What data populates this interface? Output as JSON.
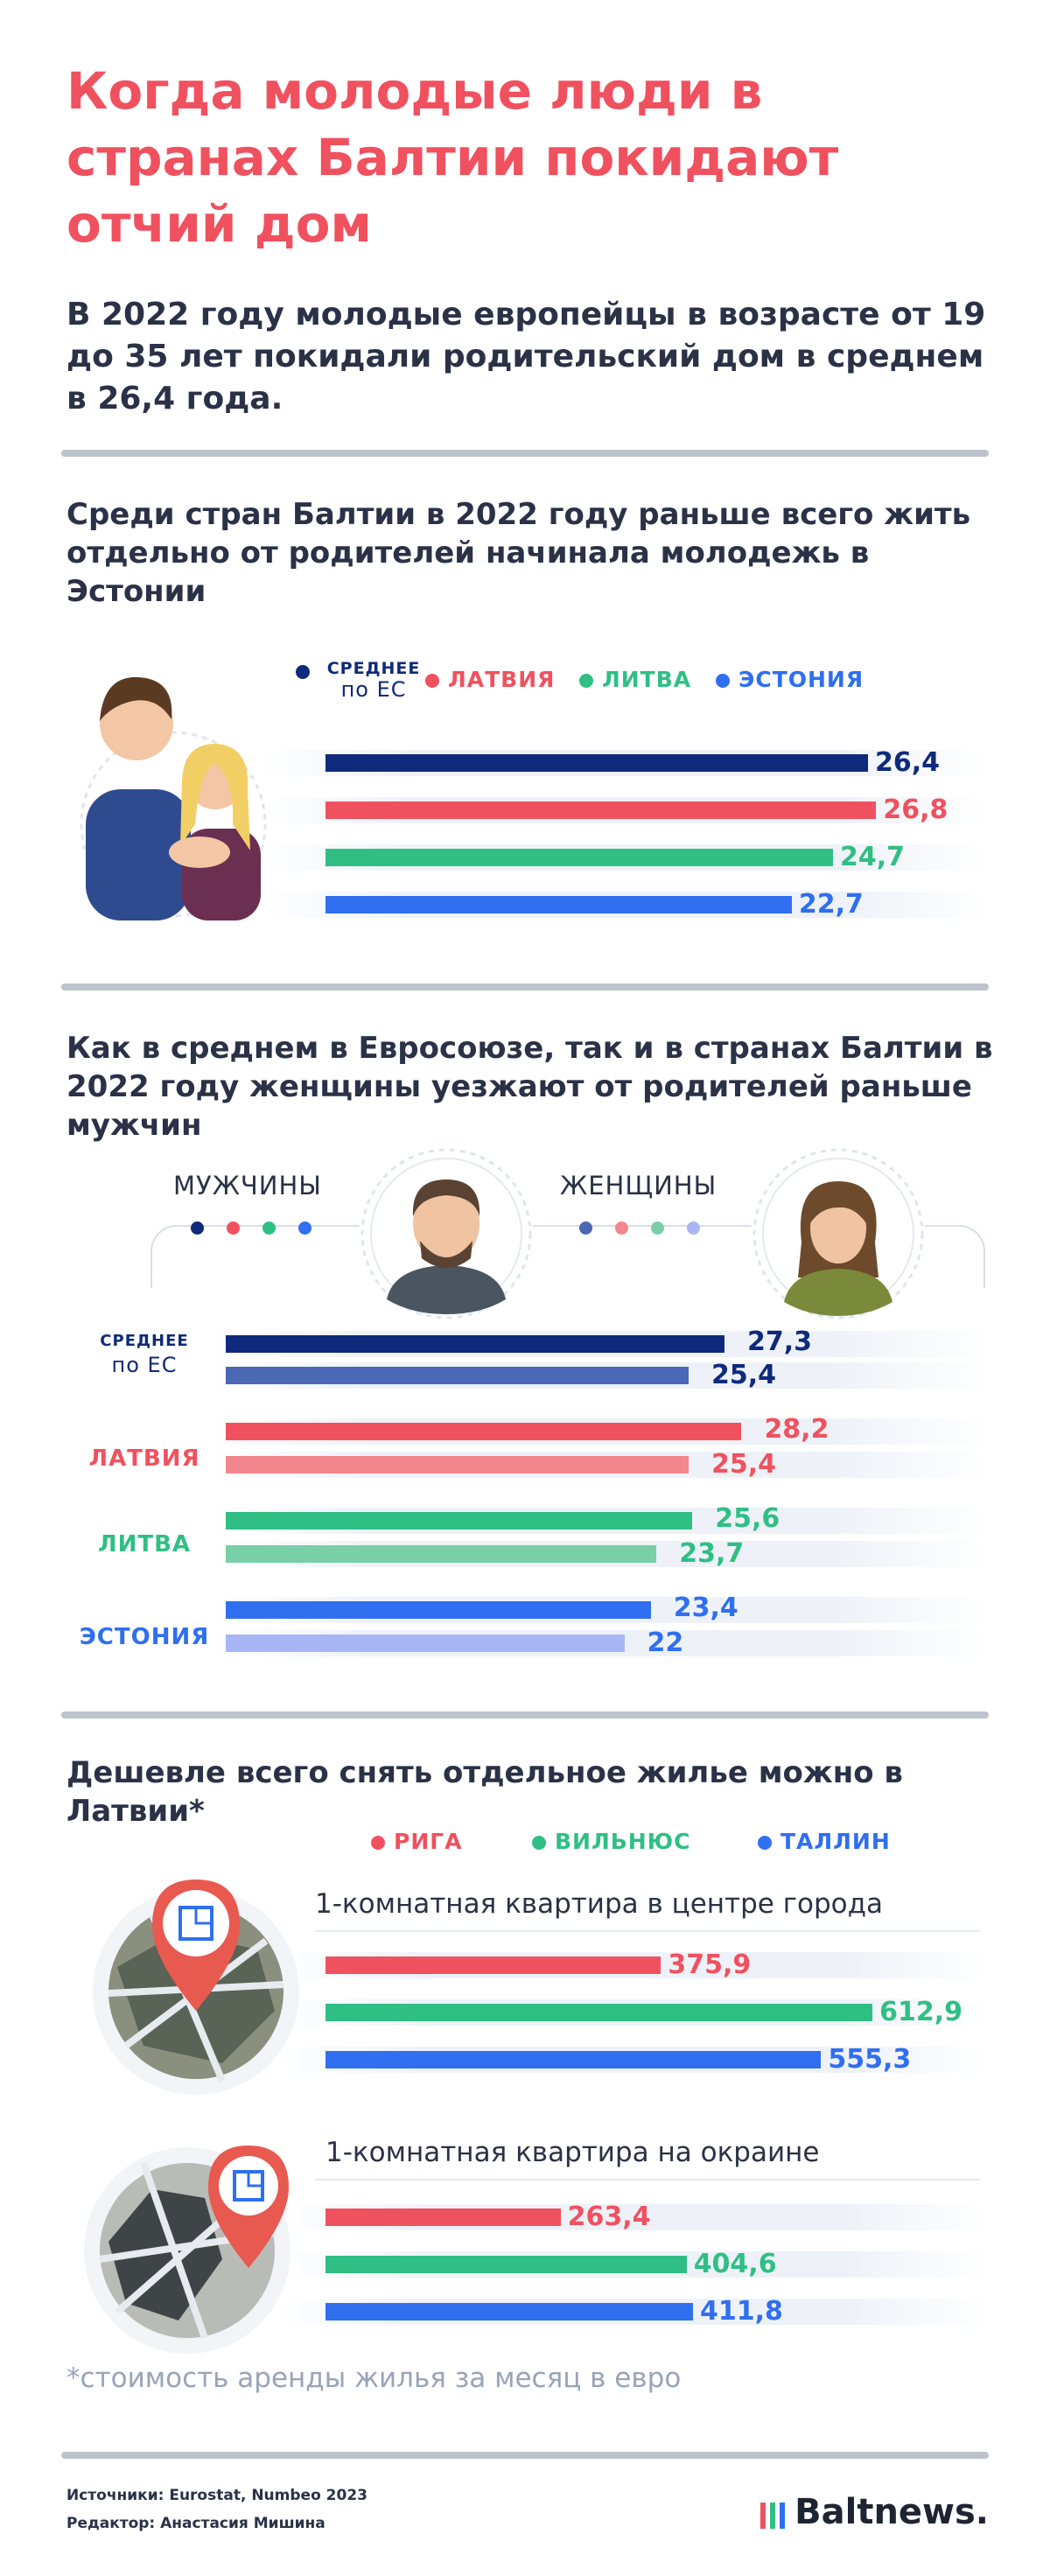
{
  "header": {
    "title": "Когда молодые люди в странах Балтии покидают отчий дом",
    "lead": "В 2022 году молодые европейцы в возрасте от 19 до 35 лет покидали родительский дом в среднем в 26,4 года."
  },
  "section1": {
    "heading": "Среди стран Балтии в 2022 году раньше всего жить отдельно от родителей начинала молодежь в Эстонии",
    "legend": [
      {
        "label": "СРЕДНЕЕ по ЕС",
        "label_top": "СРЕДНЕЕ",
        "label_bottom": "по ЕС",
        "color": "#0f2a7c"
      },
      {
        "label": "ЛАТВИЯ",
        "color": "#f0515f"
      },
      {
        "label": "ЛИТВА",
        "color": "#2fbf84"
      },
      {
        "label": "ЭСТОНИЯ",
        "color": "#2f6ff0"
      }
    ],
    "values_display": [
      "26,4",
      "26,8",
      "24,7",
      "22,7"
    ]
  },
  "section2": {
    "heading": "Как в среднем в Евросоюзе, так и в странах Балтии в 2022 году женщины уезжают от родителей раньше мужчин",
    "men_label": "МУЖЧИНЫ",
    "women_label": "ЖЕНЩИНЫ",
    "men_colors": [
      "#0f2a7c",
      "#f0515f",
      "#2fbf84",
      "#2f6ff0"
    ],
    "women_colors": [
      "#4a68b3",
      "#f4868d",
      "#79cfa7",
      "#a9b6f5"
    ],
    "categories": [
      {
        "label": "СРЕДНЕЕ по ЕС",
        "label_top": "СРЕДНЕЕ",
        "label_bottom": "по ЕС",
        "color": "#0f2a7c",
        "men": "27,3",
        "women": "25,4"
      },
      {
        "label": "ЛАТВИЯ",
        "color": "#f0515f",
        "men": "28,2",
        "women": "25,4"
      },
      {
        "label": "ЛИТВА",
        "color": "#2fbf84",
        "men": "25,6",
        "women": "23,7"
      },
      {
        "label": "ЭСТОНИЯ",
        "color": "#2f6ff0",
        "men": "23,4",
        "women": "22"
      }
    ]
  },
  "section3": {
    "heading": "Дешевле всего снять отдельное жилье можно в Латвии*",
    "legend": [
      {
        "label": "РИГА",
        "color": "#f0515f"
      },
      {
        "label": "ВИЛЬНЮС",
        "color": "#2fbf84"
      },
      {
        "label": "ТАЛЛИН",
        "color": "#2f6ff0"
      }
    ],
    "groups": [
      {
        "title": "1-комнатная квартира в центре города",
        "values_display": [
          "375,9",
          "612,9",
          "555,3"
        ]
      },
      {
        "title": "1-комнатная квартира на окраине",
        "values_display": [
          "263,4",
          "404,6",
          "411,8"
        ]
      }
    ],
    "footnote": "*стоимость аренды жилья за месяц в евро"
  },
  "footer": {
    "sources": "Источники: Eurostat, Numbeo 2023",
    "editor": "Редактор: Анастасия Мишина",
    "logo": "Baltnews.",
    "logo_bar_colors": [
      "#f0515f",
      "#2fbf84",
      "#2f6ff0"
    ]
  },
  "chart_data": [
    {
      "type": "bar",
      "categories": [
        "СРЕДНЕЕ по ЕС",
        "ЛАТВИЯ",
        "ЛИТВА",
        "ЭСТОНИЯ"
      ],
      "values": [
        26.4,
        26.8,
        24.7,
        22.7
      ],
      "title": "Среди стран Балтии в 2022 году раньше всего жить отдельно от родителей начинала молодежь в Эстонии"
    },
    {
      "type": "bar",
      "categories": [
        "СРЕДНЕЕ по ЕС",
        "ЛАТВИЯ",
        "ЛИТВА",
        "ЭСТОНИЯ"
      ],
      "series": [
        {
          "name": "МУЖЧИНЫ",
          "values": [
            27.3,
            28.2,
            25.6,
            23.4
          ]
        },
        {
          "name": "ЖЕНЩИНЫ",
          "values": [
            25.4,
            25.4,
            23.7,
            22
          ]
        }
      ],
      "title": "Как в среднем в Евросоюзе, так и в странах Балтии в 2022 году женщины уезжают от родителей раньше мужчин"
    },
    {
      "type": "bar",
      "categories": [
        "1-комнатная квартира в центре города",
        "1-комнатная квартира на окраине"
      ],
      "series": [
        {
          "name": "РИГА",
          "values": [
            375.9,
            263.4
          ]
        },
        {
          "name": "ВИЛЬНЮС",
          "values": [
            612.9,
            404.6
          ]
        },
        {
          "name": "ТАЛЛИН",
          "values": [
            555.3,
            411.8
          ]
        }
      ],
      "title": "Дешевле всего снять отдельное жилье можно в Латвии*"
    }
  ]
}
